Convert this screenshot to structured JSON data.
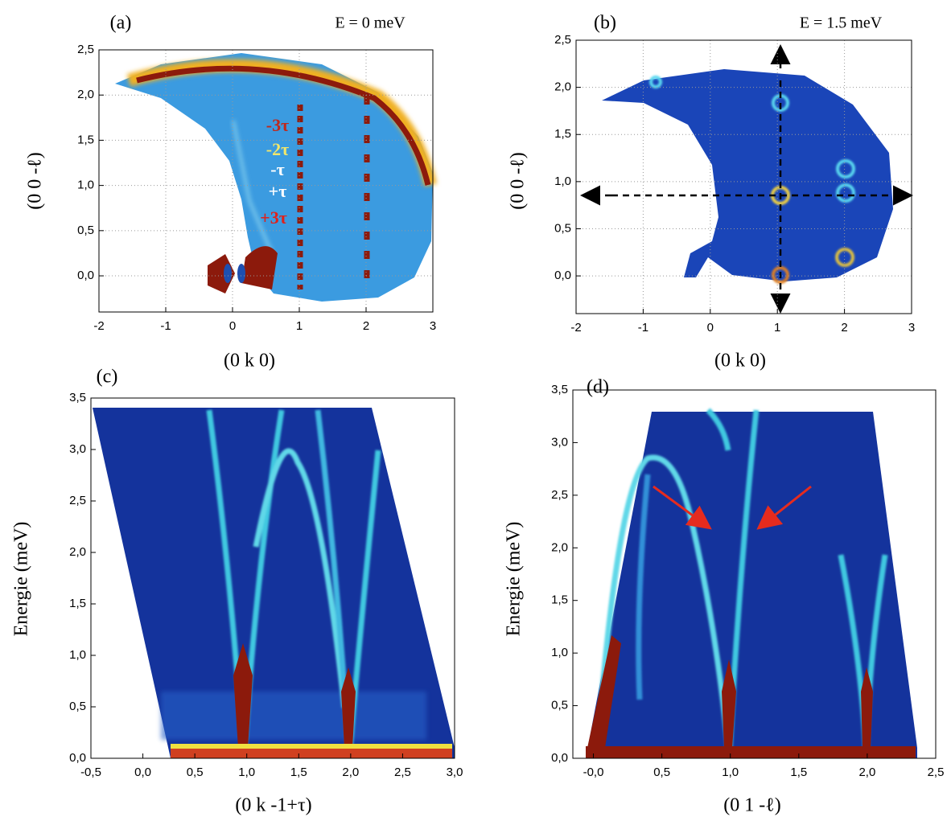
{
  "chart_data": [
    {
      "type": "heatmap",
      "panel_label": "(a)",
      "subtitle": "E = 0 meV",
      "xlabel": "(0 k 0)",
      "ylabel": "(0 0 -ℓ)",
      "xlim": [
        -2,
        3
      ],
      "ylim": [
        -0.4,
        2.5
      ],
      "xticks": [
        -2,
        -1,
        0,
        1,
        2,
        3
      ],
      "yticks": [
        {
          "value": 0,
          "label": "0,0"
        },
        {
          "value": 0.5,
          "label": "0,5"
        },
        {
          "value": 1,
          "label": "1,0"
        },
        {
          "value": 1.5,
          "label": "1,5"
        },
        {
          "value": 2,
          "label": "2,0"
        },
        {
          "value": 2.5,
          "label": "2,5"
        }
      ],
      "grid": true,
      "annotations": [
        {
          "text": "-3τ",
          "color": "#c0281b"
        },
        {
          "text": "-2τ",
          "color": "#f2e66a"
        },
        {
          "text": "-τ",
          "color": "#ffffff"
        },
        {
          "text": "+τ",
          "color": "#ffffff"
        },
        {
          "text": "+3τ",
          "color": "#e0201a"
        }
      ]
    },
    {
      "type": "heatmap",
      "panel_label": "(b)",
      "subtitle": "E = 1.5 meV",
      "xlabel": "(0 k 0)",
      "ylabel": "(0 0 -ℓ)",
      "xlim": [
        -2,
        3
      ],
      "ylim": [
        -0.4,
        2.5
      ],
      "xticks": [
        -2,
        -1,
        0,
        1,
        2,
        3
      ],
      "yticks": [
        {
          "value": 0,
          "label": "0,0"
        },
        {
          "value": 0.5,
          "label": "0,5"
        },
        {
          "value": 1,
          "label": "1,0"
        },
        {
          "value": 1.5,
          "label": "1,5"
        },
        {
          "value": 2,
          "label": "2,0"
        },
        {
          "value": 2.5,
          "label": "2,5"
        }
      ],
      "grid": true
    },
    {
      "type": "heatmap",
      "panel_label": "(c)",
      "xlabel": "(0 k -1+τ)",
      "ylabel": "Energie (meV)",
      "xlim": [
        -0.5,
        3.0
      ],
      "ylim": [
        0,
        3.5
      ],
      "xticks": [
        {
          "value": -0.5,
          "label": "-0,5"
        },
        {
          "value": 0,
          "label": "0,0"
        },
        {
          "value": 0.5,
          "label": "0,5"
        },
        {
          "value": 1,
          "label": "1,0"
        },
        {
          "value": 1.5,
          "label": "1,5"
        },
        {
          "value": 2,
          "label": "2,0"
        },
        {
          "value": 2.5,
          "label": "2,5"
        },
        {
          "value": 3,
          "label": "3,0"
        }
      ],
      "yticks": [
        {
          "value": 0,
          "label": "0,0"
        },
        {
          "value": 0.5,
          "label": "0,5"
        },
        {
          "value": 1,
          "label": "1,0"
        },
        {
          "value": 1.5,
          "label": "1,5"
        },
        {
          "value": 2,
          "label": "2,0"
        },
        {
          "value": 2.5,
          "label": "2,5"
        },
        {
          "value": 3,
          "label": "3,0"
        },
        {
          "value": 3.5,
          "label": "3,5"
        }
      ],
      "grid": false
    },
    {
      "type": "heatmap",
      "panel_label": "(d)",
      "xlabel": "(0 1 -ℓ)",
      "ylabel": "Energie (meV)",
      "xlim": [
        -0.15,
        2.5
      ],
      "ylim": [
        0,
        3.5
      ],
      "xticks": [
        {
          "value": 0,
          "label": "-0,0"
        },
        {
          "value": 0.5,
          "label": "0,5"
        },
        {
          "value": 1,
          "label": "1,0"
        },
        {
          "value": 1.5,
          "label": "1,5"
        },
        {
          "value": 2,
          "label": "2,0"
        },
        {
          "value": 2.5,
          "label": "2,5"
        }
      ],
      "yticks": [
        {
          "value": 0,
          "label": "0,0"
        },
        {
          "value": 0.5,
          "label": "0,5"
        },
        {
          "value": 1,
          "label": "1,0"
        },
        {
          "value": 1.5,
          "label": "1,5"
        },
        {
          "value": 2,
          "label": "2,0"
        },
        {
          "value": 2.5,
          "label": "2,5"
        },
        {
          "value": 3,
          "label": "3,0"
        },
        {
          "value": 3.5,
          "label": "3,5"
        }
      ],
      "grid": false
    }
  ]
}
